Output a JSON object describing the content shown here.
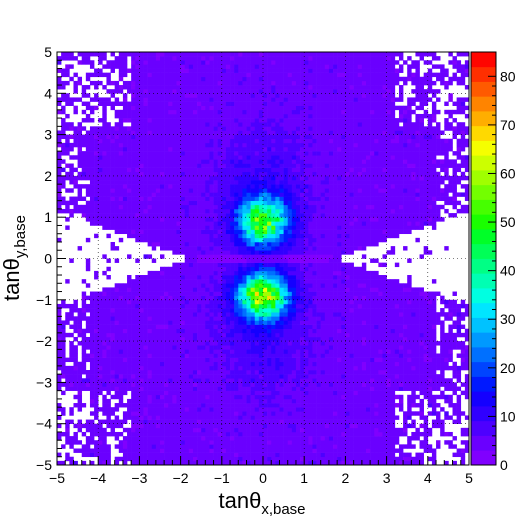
{
  "chart_data": {
    "type": "heatmap",
    "title": "",
    "xlabel_main": "tanθ",
    "xlabel_sub": "x,base",
    "ylabel_main": "tanθ",
    "ylabel_sub": "y,base",
    "xlim": [
      -5,
      5
    ],
    "ylim": [
      -5,
      5
    ],
    "x_ticks": [
      "−5",
      "−4",
      "−3",
      "−2",
      "−1",
      "0",
      "1",
      "2",
      "3",
      "4",
      "5"
    ],
    "y_ticks": [
      "−5",
      "−4",
      "−3",
      "−2",
      "−1",
      "0",
      "1",
      "2",
      "3",
      "4",
      "5"
    ],
    "grid": true,
    "colorbar": {
      "min": 0,
      "max": 85,
      "ticks": [
        "0",
        "10",
        "20",
        "30",
        "40",
        "50",
        "60",
        "70",
        "80"
      ],
      "palette": [
        "#8000ff",
        "#6a00ff",
        "#4d00ff",
        "#3000ff",
        "#1400ff",
        "#0019ff",
        "#0044ff",
        "#0070ff",
        "#0099ff",
        "#00c2ff",
        "#00e6ff",
        "#00ffe1",
        "#00ffb3",
        "#00ff85",
        "#00ff57",
        "#00ff28",
        "#1aff00",
        "#46ff00",
        "#73ff00",
        "#a0ff00",
        "#ccff00",
        "#f5ff00",
        "#ffd900",
        "#ffae00",
        "#ff8400",
        "#ff5a00",
        "#ff2f00",
        "#ff0500"
      ]
    },
    "features": [
      {
        "name": "upper lobe",
        "x": 0.0,
        "y": 0.9,
        "peak": 45
      },
      {
        "name": "lower lobe",
        "x": 0.0,
        "y": -0.9,
        "peak": 55
      },
      {
        "name": "horizontal gap",
        "y": 0.0
      },
      {
        "name": "empty wedges",
        "x_left": -3.0,
        "x_right": 3.0,
        "y": 0.0
      }
    ]
  }
}
